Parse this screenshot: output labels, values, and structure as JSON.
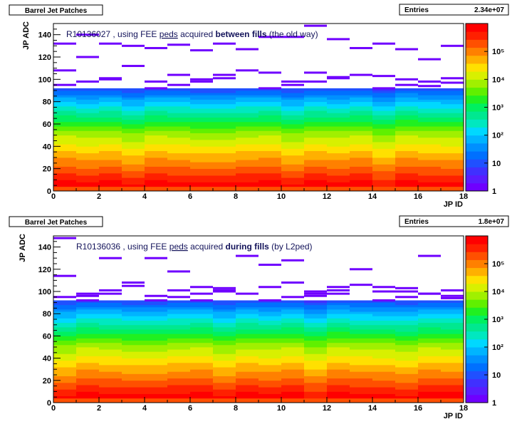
{
  "chart_data": [
    {
      "type": "heatmap",
      "title": "Barrel Jet Patches",
      "stats": {
        "label": "Entries",
        "value": "2.34e+07"
      },
      "annotation": {
        "prefix": "R10136027 , using FEE ",
        "peds": "peds",
        "mid": " acquired ",
        "bold": "between fills",
        "suffix": " (the old way)"
      },
      "xlabel": "JP ID",
      "ylabel": "JP ADC",
      "xlim": [
        0,
        18
      ],
      "ylim": [
        0,
        150
      ],
      "x_ticks": [
        "0",
        "2",
        "4",
        "6",
        "8",
        "10",
        "12",
        "14",
        "16",
        "18"
      ],
      "y_ticks": [
        "0",
        "20",
        "40",
        "60",
        "80",
        "100",
        "120",
        "140"
      ],
      "palette_labels": [
        "1",
        "10",
        "10²",
        "10³",
        "10⁴",
        "10⁵"
      ],
      "z_scale": "log",
      "z_range": [
        1,
        1000000
      ],
      "grid": false,
      "upper_band_y": [
        [
          108,
          132
        ],
        [
          120,
          140
        ],
        [
          100,
          132
        ],
        [
          112,
          130
        ],
        [
          98,
          128
        ],
        [
          104,
          131
        ],
        [
          100,
          126
        ],
        [
          104,
          132
        ],
        [
          108,
          127
        ],
        [
          106,
          138
        ],
        [
          98,
          138
        ],
        [
          106,
          148
        ],
        [
          102,
          136
        ],
        [
          104,
          128
        ],
        [
          103,
          132
        ],
        [
          100,
          127
        ],
        [
          94,
          118
        ],
        [
          97,
          130
        ]
      ]
    },
    {
      "type": "heatmap",
      "title": "Barrel Jet Patches",
      "stats": {
        "label": "Entries",
        "value": "1.8e+07"
      },
      "annotation": {
        "prefix": "R10136036 , using FEE ",
        "peds": "peds",
        "mid": " acquired ",
        "bold": "during fills",
        "suffix": " (by L2ped)"
      },
      "xlabel": "JP ID",
      "ylabel": "JP ADC",
      "xlim": [
        0,
        18
      ],
      "ylim": [
        0,
        150
      ],
      "x_ticks": [
        "0",
        "2",
        "4",
        "6",
        "8",
        "10",
        "12",
        "14",
        "16",
        "18"
      ],
      "y_ticks": [
        "0",
        "20",
        "40",
        "60",
        "80",
        "100",
        "120",
        "140"
      ],
      "palette_labels": [
        "1",
        "10",
        "10²",
        "10³",
        "10⁴",
        "10⁵"
      ],
      "z_scale": "log",
      "z_range": [
        1,
        1000000
      ],
      "grid": false,
      "upper_band_y": [
        [
          148,
          114
        ],
        [
          92,
          96
        ],
        [
          130,
          98
        ],
        [
          105,
          108
        ],
        [
          96,
          130
        ],
        [
          101,
          118
        ],
        [
          92,
          104
        ],
        [
          103,
          100
        ],
        [
          98,
          132
        ],
        [
          104,
          124
        ],
        [
          108,
          128
        ],
        [
          100,
          96
        ],
        [
          104,
          98
        ],
        [
          106,
          120
        ],
        [
          100,
          104
        ],
        [
          103,
          100
        ],
        [
          98,
          132
        ],
        [
          94,
          96
        ]
      ]
    }
  ]
}
